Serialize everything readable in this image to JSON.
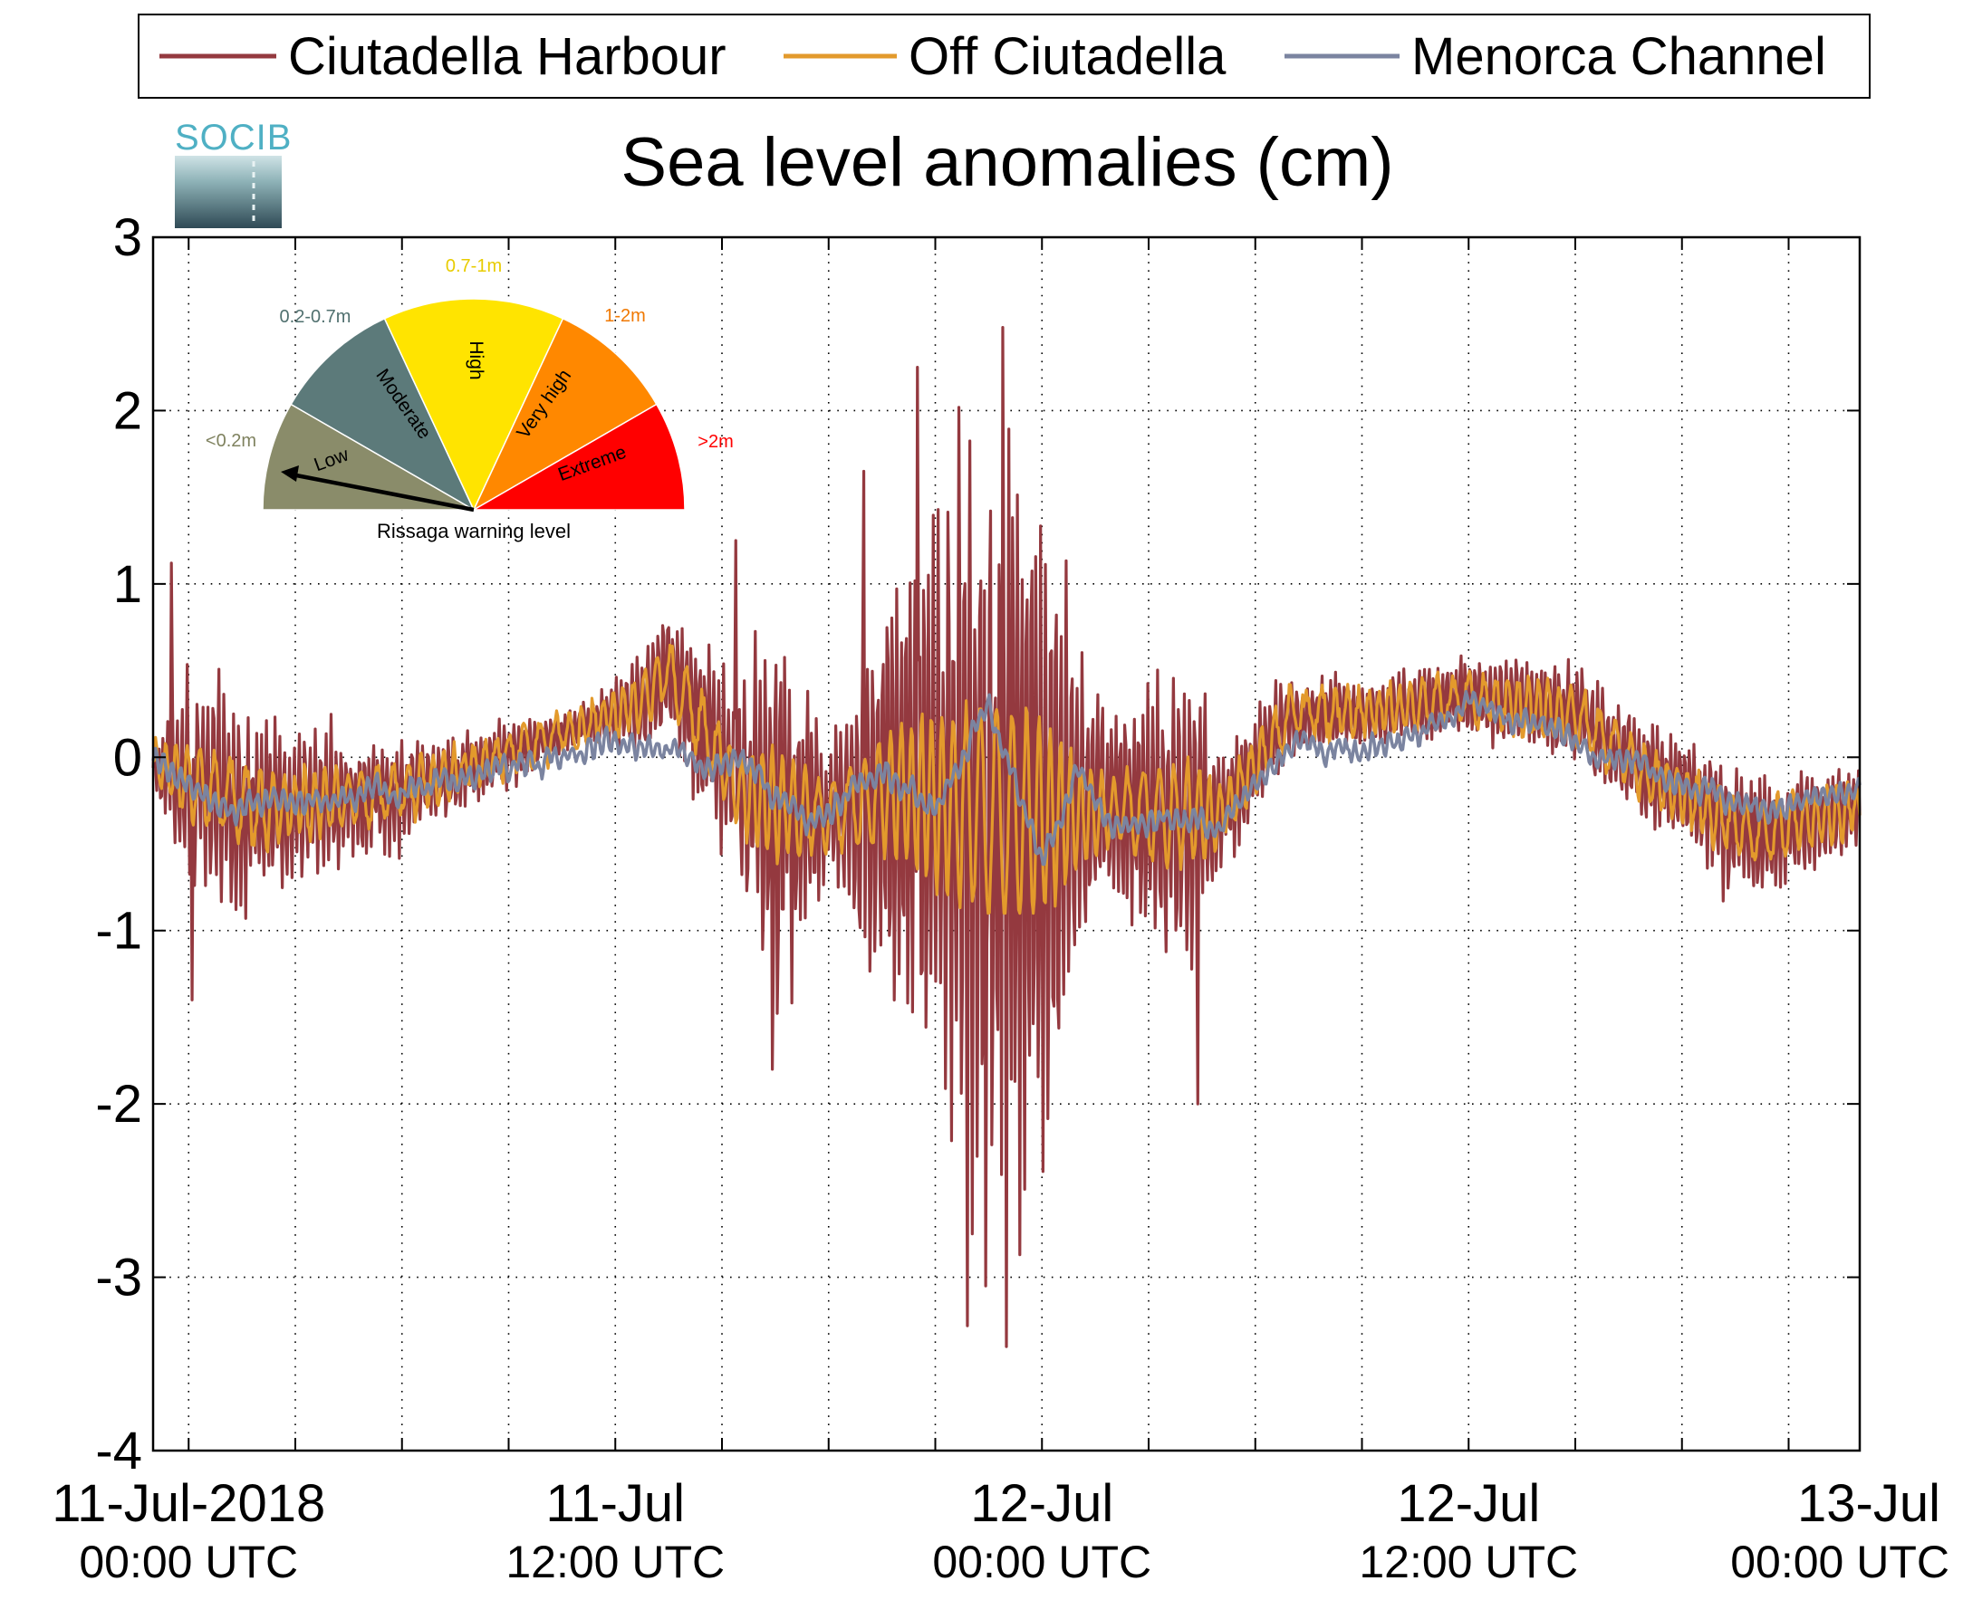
{
  "chart_data": {
    "type": "line",
    "title": "Sea level anomalies (cm)",
    "xlabel": "",
    "ylabel": "",
    "ylim": [
      -4,
      3
    ],
    "yticks": [
      3,
      2,
      1,
      0,
      -1,
      -2,
      -3,
      -4
    ],
    "ytick_labels": [
      "3",
      "2",
      "1",
      "0",
      "-1",
      "-2",
      "-3",
      "-4"
    ],
    "xlim_hours": [
      -1,
      47
    ],
    "xticks": [
      {
        "hour": 0,
        "line1": "11-Jul-2018",
        "line2": "00:00 UTC"
      },
      {
        "hour": 12,
        "line1": "11-Jul",
        "line2": "12:00 UTC"
      },
      {
        "hour": 24,
        "line1": "12-Jul",
        "line2": "00:00 UTC"
      },
      {
        "hour": 36,
        "line1": "12-Jul",
        "line2": "12:00 UTC"
      },
      {
        "hour": 48,
        "line1": "13-Jul",
        "line2": "00:00 UTC"
      }
    ],
    "grid": "dotted",
    "legend": "top",
    "series": [
      {
        "name": "Ciutadella Harbour",
        "color": "#94393f",
        "baseline": {
          "hours": [
            -1,
            2,
            6,
            10,
            12.5,
            13.5,
            15.5,
            17.5,
            20,
            22,
            24,
            26,
            29,
            31,
            33,
            36,
            39,
            41,
            44,
            47
          ],
          "values": [
            -0.05,
            -0.3,
            -0.2,
            0.1,
            0.3,
            0.5,
            -0.2,
            -0.35,
            -0.2,
            -0.3,
            -0.35,
            -0.3,
            -0.35,
            0.25,
            0.25,
            0.35,
            0.25,
            -0.1,
            -0.45,
            -0.3
          ]
        },
        "oscillation_amplitude": {
          "hours": [
            -1,
            0,
            2,
            4,
            11,
            14,
            15.5,
            16.5,
            18,
            20,
            22,
            23,
            24,
            25,
            26,
            28,
            29,
            31,
            33,
            36,
            40,
            44,
            47
          ],
          "values": [
            0.1,
            0.7,
            0.6,
            0.4,
            0.12,
            0.45,
            0.6,
            1.2,
            0.4,
            1.4,
            2.2,
            2.5,
            2.2,
            1.1,
            0.5,
            1.0,
            0.4,
            0.25,
            0.2,
            0.25,
            0.3,
            0.4,
            0.25
          ]
        },
        "range": {
          "min": -3.4,
          "max": 2.48
        }
      },
      {
        "name": "Off Ciutadella",
        "color": "#e39a2c",
        "baseline": {
          "hours": [
            -1,
            2,
            6,
            10,
            12.5,
            13.5,
            15.5,
            17.5,
            20,
            22,
            24,
            26,
            29,
            31,
            33,
            36,
            39,
            41,
            44,
            47
          ],
          "values": [
            -0.05,
            -0.3,
            -0.2,
            0.1,
            0.3,
            0.5,
            -0.2,
            -0.35,
            -0.2,
            -0.3,
            -0.35,
            -0.3,
            -0.35,
            0.25,
            0.25,
            0.35,
            0.25,
            -0.1,
            -0.45,
            -0.3
          ]
        },
        "range": {
          "min": -0.9,
          "max": 0.8
        }
      },
      {
        "name": "Menorca Channel",
        "color": "#7b84a0",
        "baseline": {
          "hours": [
            -1,
            1,
            3,
            6,
            9,
            12,
            13.5,
            14.5,
            15.5,
            17.5,
            19.5,
            21,
            22.5,
            24,
            25,
            26,
            27.5,
            29,
            31,
            33,
            35,
            36,
            37,
            39,
            41,
            44,
            47
          ],
          "values": [
            0,
            -0.3,
            -0.25,
            -0.2,
            -0.05,
            0.1,
            0.05,
            -0.05,
            0.0,
            -0.4,
            -0.1,
            -0.3,
            0.3,
            -0.6,
            -0.1,
            -0.4,
            -0.35,
            -0.4,
            0.1,
            0.0,
            0.2,
            0.3,
            0.25,
            0.1,
            -0.05,
            -0.3,
            -0.2
          ]
        },
        "range": {
          "min": -0.93,
          "max": 0.47
        }
      }
    ]
  },
  "logo": {
    "text": "SOCIB"
  },
  "gauge": {
    "caption": "Rissaga warning level",
    "needle_level": "Low",
    "segments": [
      {
        "label": "Low",
        "range": "<0.2m",
        "color": "#8a8c6a",
        "range_color": "#7f825f"
      },
      {
        "label": "Moderate",
        "range": "0.2-0.7m",
        "color": "#5c7a7a",
        "range_color": "#50706f"
      },
      {
        "label": "High",
        "range": "0.7-1m",
        "color": "#ffe400",
        "range_color": "#e8cc00"
      },
      {
        "label": "Very high",
        "range": "1-2m",
        "color": "#ff8800",
        "range_color": "#f07800"
      },
      {
        "label": "Extreme",
        "range": ">2m",
        "color": "#ff0000",
        "range_color": "#ff0000"
      }
    ]
  }
}
